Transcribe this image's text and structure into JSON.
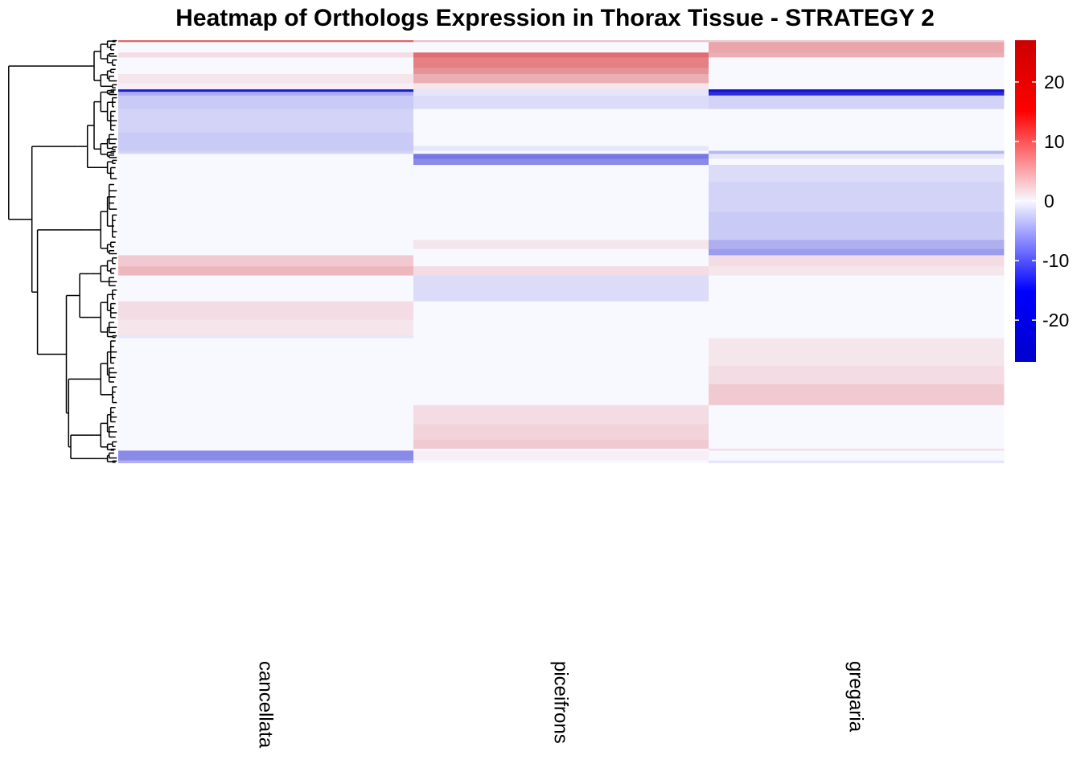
{
  "chart_data": {
    "type": "heatmap",
    "title": "Heatmap of Orthologs Expression in Thorax Tissue - STRATEGY 2",
    "columns": [
      "cancellata",
      "piceifrons",
      "gregaria"
    ],
    "row_count": 1000,
    "row_clustering": "hierarchical dendrogram (left)",
    "colorscale": {
      "low": "#0000cc",
      "mid": "#f8f8ff",
      "high": "#cc0000",
      "range": [
        -27,
        27
      ],
      "ticks": [
        20,
        10,
        0,
        -10,
        -20
      ],
      "tick_labels": [
        "20",
        "10",
        "0",
        "-10",
        "-20"
      ]
    },
    "blocks": [
      {
        "rows": [
          0,
          3
        ],
        "values": [
          16,
          6,
          5
        ]
      },
      {
        "rows": [
          3,
          20
        ],
        "values": [
          0,
          0,
          9
        ]
      },
      {
        "rows": [
          20,
          28
        ],
        "values": [
          3,
          15,
          8
        ]
      },
      {
        "rows": [
          28,
          45
        ],
        "values": [
          0,
          13,
          0
        ]
      },
      {
        "rows": [
          45,
          55
        ],
        "values": [
          0,
          11,
          0
        ]
      },
      {
        "rows": [
          55,
          70
        ],
        "values": [
          2,
          8,
          0
        ]
      },
      {
        "rows": [
          70,
          80
        ],
        "values": [
          1,
          2,
          0
        ]
      },
      {
        "rows": [
          80,
          84
        ],
        "values": [
          -24,
          -2,
          -25
        ]
      },
      {
        "rows": [
          84,
          90
        ],
        "values": [
          -8,
          -2,
          -22
        ]
      },
      {
        "rows": [
          90,
          112
        ],
        "values": [
          -5,
          -3,
          -4
        ]
      },
      {
        "rows": [
          112,
          150
        ],
        "values": [
          -4,
          0,
          0
        ]
      },
      {
        "rows": [
          150,
          172
        ],
        "values": [
          -5,
          0,
          0
        ]
      },
      {
        "rows": [
          172,
          180
        ],
        "values": [
          -5,
          -2,
          0
        ]
      },
      {
        "rows": [
          180,
          185
        ],
        "values": [
          -4,
          0,
          -7
        ]
      },
      {
        "rows": [
          185,
          193
        ],
        "values": [
          0,
          -14,
          -2
        ]
      },
      {
        "rows": [
          193,
          203
        ],
        "values": [
          0,
          -12,
          0
        ]
      },
      {
        "rows": [
          203,
          230
        ],
        "values": [
          0,
          0,
          -3
        ]
      },
      {
        "rows": [
          230,
          280
        ],
        "values": [
          0,
          0,
          -4
        ]
      },
      {
        "rows": [
          280,
          325
        ],
        "values": [
          0,
          0,
          -5
        ]
      },
      {
        "rows": [
          325,
          340
        ],
        "values": [
          0,
          2,
          -8
        ]
      },
      {
        "rows": [
          340,
          350
        ],
        "values": [
          0,
          0,
          -10
        ]
      },
      {
        "rows": [
          350,
          368
        ],
        "values": [
          5,
          0,
          3
        ]
      },
      {
        "rows": [
          368,
          383
        ],
        "values": [
          7,
          3,
          2
        ]
      },
      {
        "rows": [
          383,
          403
        ],
        "values": [
          0,
          -3,
          0
        ]
      },
      {
        "rows": [
          403,
          425
        ],
        "values": [
          0,
          -3,
          0
        ]
      },
      {
        "rows": [
          425,
          455
        ],
        "values": [
          3,
          0,
          0
        ]
      },
      {
        "rows": [
          455,
          480
        ],
        "values": [
          2,
          0,
          0
        ]
      },
      {
        "rows": [
          480,
          485
        ],
        "values": [
          -2,
          0,
          0
        ]
      },
      {
        "rows": [
          485,
          530
        ],
        "values": [
          0,
          0,
          2
        ]
      },
      {
        "rows": [
          530,
          560
        ],
        "values": [
          0,
          0,
          3
        ]
      },
      {
        "rows": [
          560,
          594
        ],
        "values": [
          0,
          0,
          5
        ]
      },
      {
        "rows": [
          594,
          625
        ],
        "values": [
          0,
          3,
          0
        ]
      },
      {
        "rows": [
          625,
          650
        ],
        "values": [
          0,
          4,
          0
        ]
      },
      {
        "rows": [
          650,
          665
        ],
        "values": [
          0,
          5,
          0
        ]
      },
      {
        "rows": [
          665,
          668
        ],
        "values": [
          0,
          0,
          3
        ]
      },
      {
        "rows": [
          668,
          684
        ],
        "values": [
          -12,
          1,
          0
        ]
      },
      {
        "rows": [
          684,
          688
        ],
        "values": [
          -8,
          0,
          -2
        ]
      }
    ]
  }
}
